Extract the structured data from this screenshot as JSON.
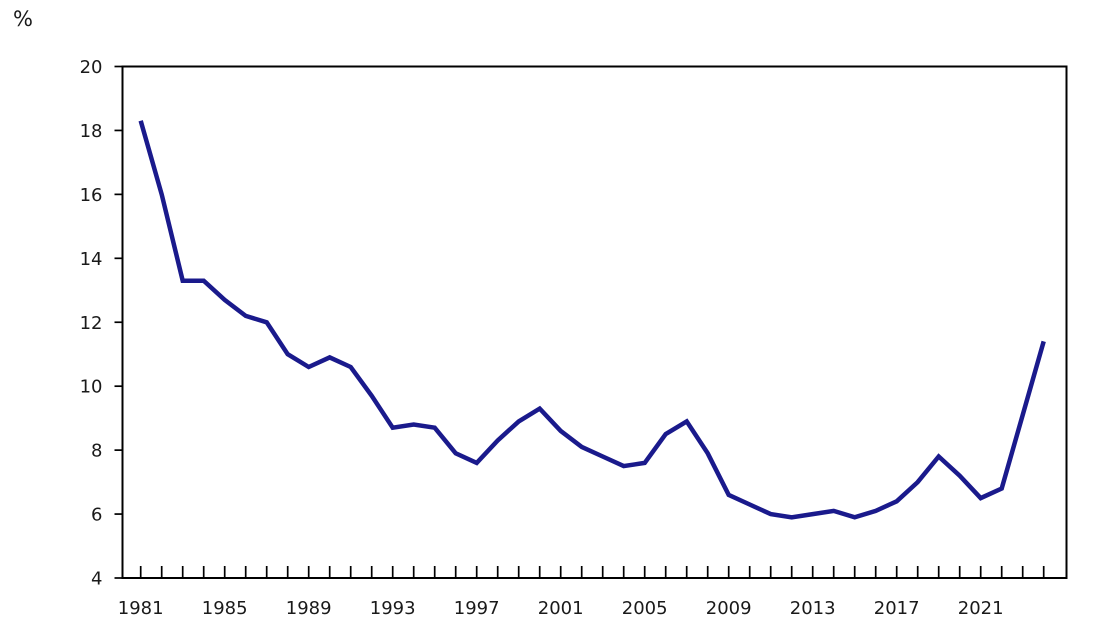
{
  "unit_label": "%",
  "colors": {
    "line": "#1a1a8c",
    "axis": "#000000",
    "text": "#1a1a1a",
    "background": "#ffffff"
  },
  "chart_data": {
    "type": "line",
    "title": "",
    "unit_label": "%",
    "ylabel": "%",
    "xlabel": "",
    "grid": false,
    "legend": "none",
    "ylim": [
      4,
      20
    ],
    "y_ticks": [
      4,
      6,
      8,
      10,
      12,
      14,
      16,
      18,
      20
    ],
    "x_tick_every_year": true,
    "x_labeled_ticks": [
      1981,
      1985,
      1989,
      1993,
      1997,
      2001,
      2005,
      2009,
      2013,
      2017,
      2021
    ],
    "x": [
      1981,
      1982,
      1983,
      1984,
      1985,
      1986,
      1987,
      1988,
      1989,
      1990,
      1991,
      1992,
      1993,
      1994,
      1995,
      1996,
      1997,
      1998,
      1999,
      2000,
      2001,
      2002,
      2003,
      2004,
      2005,
      2006,
      2007,
      2008,
      2009,
      2010,
      2011,
      2012,
      2013,
      2014,
      2015,
      2016,
      2017,
      2018,
      2019,
      2020,
      2021,
      2022,
      2023,
      2024
    ],
    "series": [
      {
        "name": "percent",
        "color": "#1a1a8c",
        "values": [
          18.3,
          16.0,
          13.3,
          13.3,
          12.7,
          12.2,
          12.0,
          11.0,
          10.6,
          10.9,
          10.6,
          9.7,
          8.7,
          8.8,
          8.7,
          7.9,
          7.6,
          8.3,
          8.9,
          9.3,
          8.6,
          8.1,
          7.8,
          7.5,
          7.6,
          8.5,
          8.9,
          7.9,
          6.6,
          6.3,
          6.0,
          5.9,
          6.0,
          6.1,
          5.9,
          6.1,
          6.4,
          7.0,
          7.8,
          7.2,
          6.5,
          6.8,
          9.1,
          11.4
        ]
      }
    ]
  }
}
